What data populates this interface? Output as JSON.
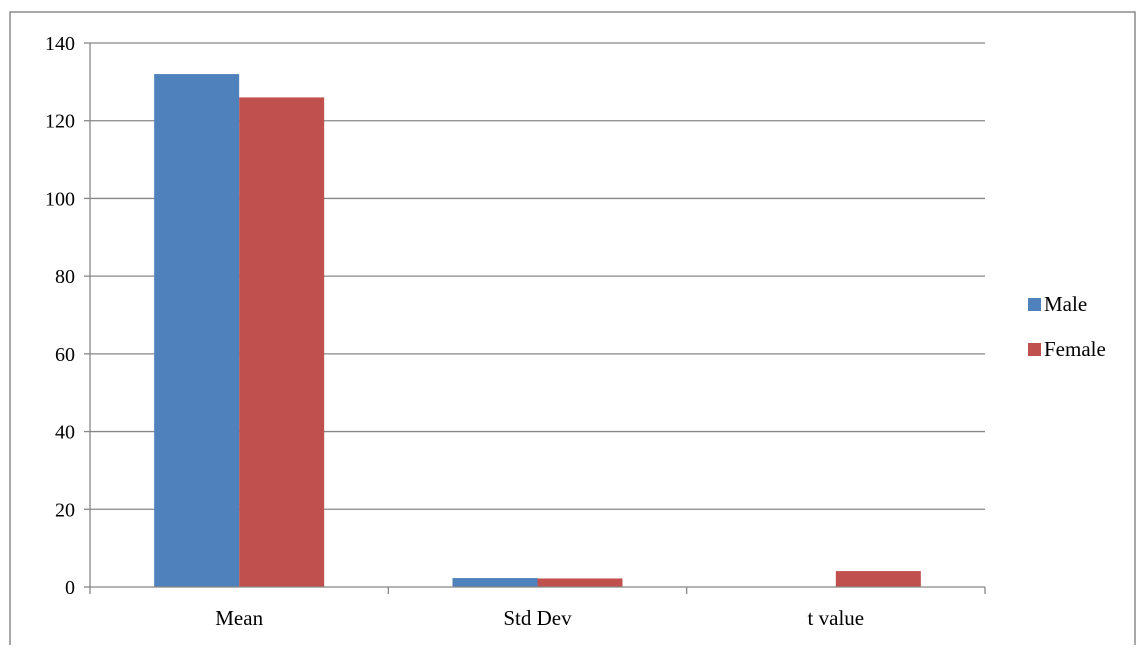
{
  "chart_data": {
    "type": "bar",
    "title": "",
    "xlabel": "",
    "ylabel": "",
    "categories": [
      "Mean",
      "Std Dev",
      "t value"
    ],
    "series": [
      {
        "name": "Male",
        "values": [
          132,
          2.3,
          0
        ],
        "color": "#4f81bd"
      },
      {
        "name": "Female",
        "values": [
          126,
          2.2,
          4.1
        ],
        "color": "#c0504d"
      }
    ],
    "ylim": [
      0,
      140
    ],
    "yticks": [
      0,
      20,
      40,
      60,
      80,
      100,
      120,
      140
    ],
    "grid": true,
    "legend": "right"
  }
}
